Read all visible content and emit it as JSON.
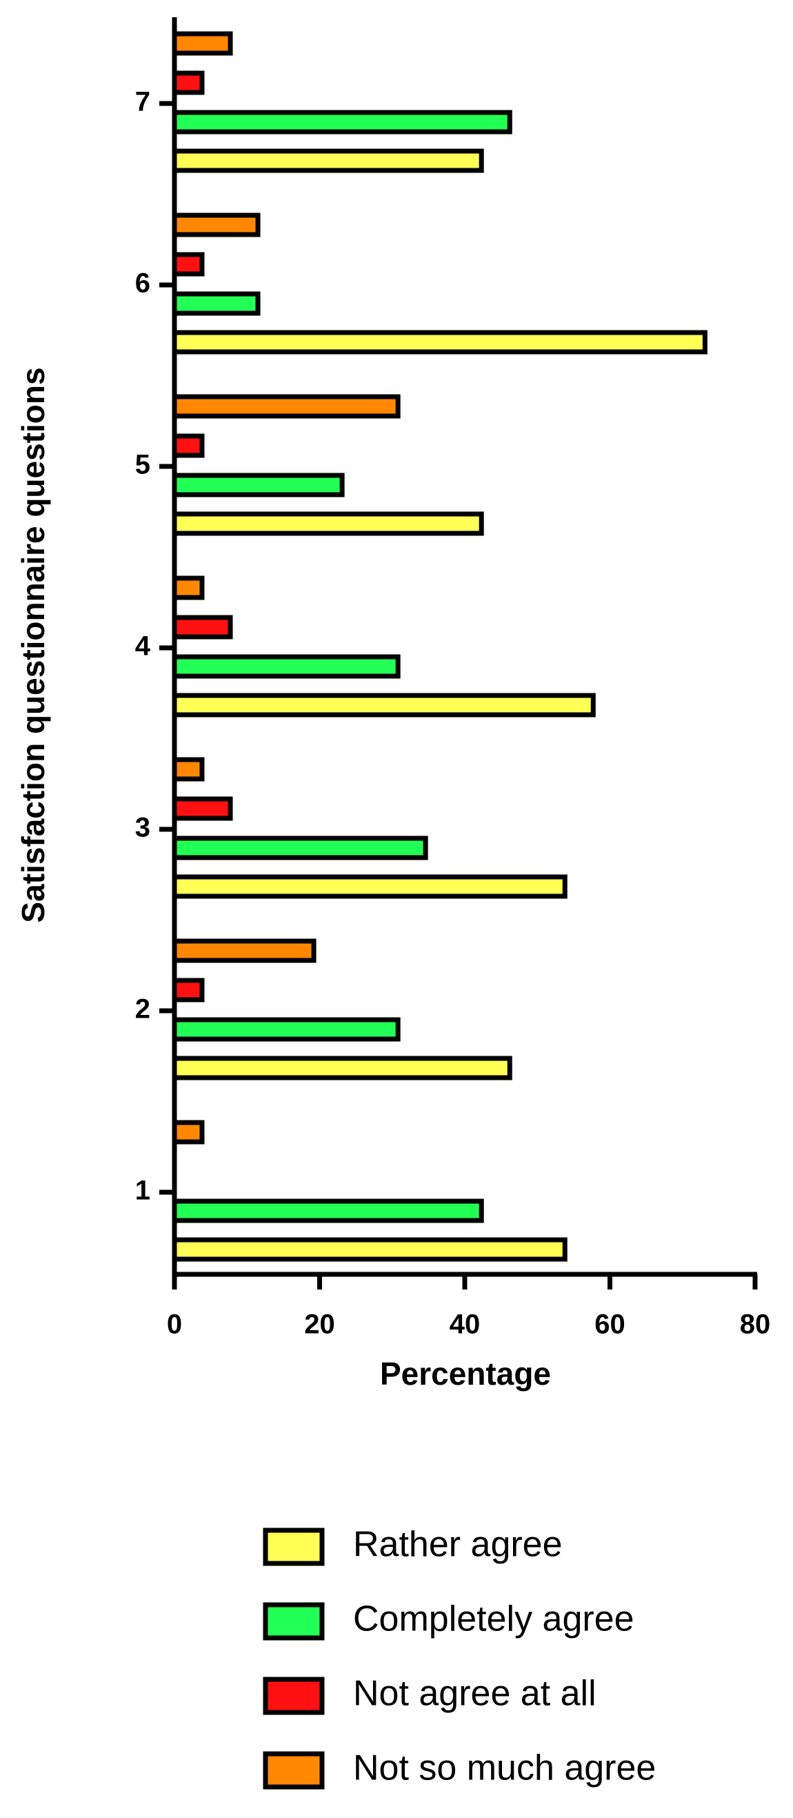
{
  "chart_data": {
    "type": "bar",
    "orientation": "horizontal",
    "y_label": "Satisfaction questionnaire questions",
    "x_label": "Percentage",
    "categories": [
      "1",
      "2",
      "3",
      "4",
      "5",
      "6",
      "7"
    ],
    "series": [
      {
        "name": "Rather agree",
        "color": "#ffff55",
        "values": [
          53.8,
          46.2,
          53.8,
          57.7,
          42.3,
          73.1,
          42.3
        ]
      },
      {
        "name": "Completely agree",
        "color": "#22ff55",
        "values": [
          42.3,
          30.8,
          34.6,
          30.8,
          23.1,
          11.5,
          46.2
        ]
      },
      {
        "name": "Not agree at all",
        "color": "#ff1111",
        "values": [
          0,
          3.8,
          7.7,
          7.7,
          3.8,
          3.8,
          3.8
        ]
      },
      {
        "name": "Not so much agree",
        "color": "#ff8800",
        "values": [
          3.8,
          19.2,
          3.8,
          3.8,
          30.8,
          11.5,
          7.7
        ]
      }
    ],
    "xlim": [
      0,
      80
    ],
    "xticks": [
      0,
      20,
      40,
      60,
      80
    ],
    "grid": false
  }
}
